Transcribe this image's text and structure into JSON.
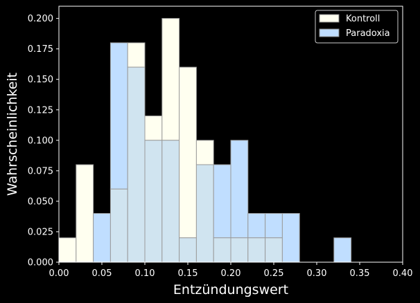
{
  "chart_data": {
    "type": "bar",
    "subtype": "overlapping-histogram",
    "title": "",
    "xlabel": "Entzündungswert",
    "ylabel": "Wahrscheinlichkeit",
    "xlim": [
      0,
      0.4
    ],
    "ylim": [
      0,
      0.21
    ],
    "bin_edges": [
      0.0,
      0.02,
      0.04,
      0.06,
      0.08,
      0.1,
      0.12,
      0.14,
      0.16,
      0.18,
      0.2,
      0.22,
      0.24,
      0.26,
      0.28,
      0.3,
      0.32,
      0.34,
      0.36,
      0.38,
      0.4
    ],
    "x_ticks": [
      "0.00",
      "0.05",
      "0.10",
      "0.15",
      "0.20",
      "0.25",
      "0.30",
      "0.35",
      "0.40"
    ],
    "y_ticks": [
      "0.000",
      "0.025",
      "0.050",
      "0.075",
      "0.100",
      "0.125",
      "0.150",
      "0.175",
      "0.200"
    ],
    "grid": false,
    "legend": {
      "position": "top-right"
    },
    "background": "#000000",
    "series": [
      {
        "name": "Kontroll",
        "color": "#fffff0",
        "values": [
          0.02,
          0.08,
          0.0,
          0.06,
          0.18,
          0.12,
          0.2,
          0.16,
          0.1,
          0.02,
          0.02,
          0.02,
          0.02,
          0.0,
          0.0,
          0.0,
          0.0,
          0.0,
          0.0,
          0.0
        ]
      },
      {
        "name": "Paradoxia",
        "color": "#c0deff",
        "values": [
          0.0,
          0.0,
          0.04,
          0.18,
          0.16,
          0.1,
          0.1,
          0.02,
          0.08,
          0.08,
          0.1,
          0.04,
          0.04,
          0.04,
          0.0,
          0.0,
          0.02,
          0.0,
          0.0,
          0.0
        ]
      }
    ],
    "overlap_color": "#d0e4f0"
  }
}
